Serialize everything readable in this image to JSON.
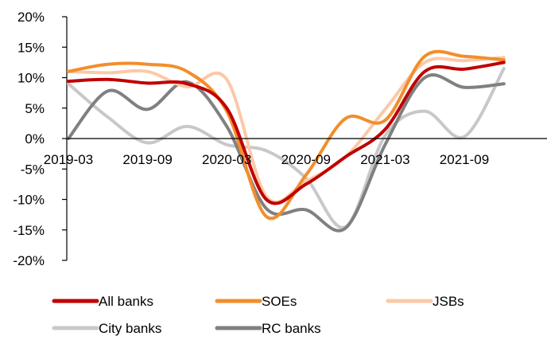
{
  "chart_data": {
    "type": "line",
    "title": "",
    "xlabel": "",
    "ylabel": "",
    "ylim": [
      -20,
      20
    ],
    "y_ticks": [
      20,
      15,
      10,
      5,
      0,
      -5,
      -10,
      -15,
      -20
    ],
    "y_tick_labels": [
      "20%",
      "15%",
      "10%",
      "5%",
      "0%",
      "-5%",
      "-10%",
      "-15%",
      "-20%"
    ],
    "x": [
      "2019-03",
      "2019-06",
      "2019-09",
      "2019-12",
      "2020-03",
      "2020-06",
      "2020-09",
      "2020-12",
      "2021-03",
      "2021-06",
      "2021-09",
      "2021-12"
    ],
    "x_tick_labels": [
      "2019-03",
      "2019-09",
      "2020-03",
      "2020-09",
      "2021-03",
      "2021-09"
    ],
    "grid": false,
    "legend_position": "bottom",
    "series": [
      {
        "name": "All banks",
        "color": "#c00000",
        "values": [
          9.4,
          9.7,
          9.1,
          9.0,
          5.0,
          -10.0,
          -7.5,
          -3.0,
          1.5,
          11.0,
          11.4,
          12.5
        ]
      },
      {
        "name": "SOEs",
        "color": "#f28e2b",
        "values": [
          11.0,
          12.2,
          12.2,
          11.0,
          4.5,
          -12.8,
          -6.0,
          3.3,
          3.0,
          13.5,
          13.5,
          12.9
        ]
      },
      {
        "name": "JSBs",
        "color": "#fbc9a8",
        "values": [
          11.0,
          10.8,
          11.0,
          8.5,
          9.7,
          -9.5,
          -7.0,
          -3.0,
          4.8,
          12.5,
          12.8,
          13.3
        ]
      },
      {
        "name": "City banks",
        "color": "#c8c8c8",
        "values": [
          9.0,
          3.5,
          -0.7,
          2.0,
          -1.0,
          -2.0,
          -6.5,
          -14.5,
          0.5,
          4.5,
          0.3,
          11.5
        ]
      },
      {
        "name": "RC banks",
        "color": "#808080",
        "values": [
          0.0,
          7.8,
          4.8,
          9.3,
          2.0,
          -11.5,
          -11.7,
          -14.7,
          -1.0,
          10.0,
          8.4,
          9.0
        ]
      }
    ]
  }
}
